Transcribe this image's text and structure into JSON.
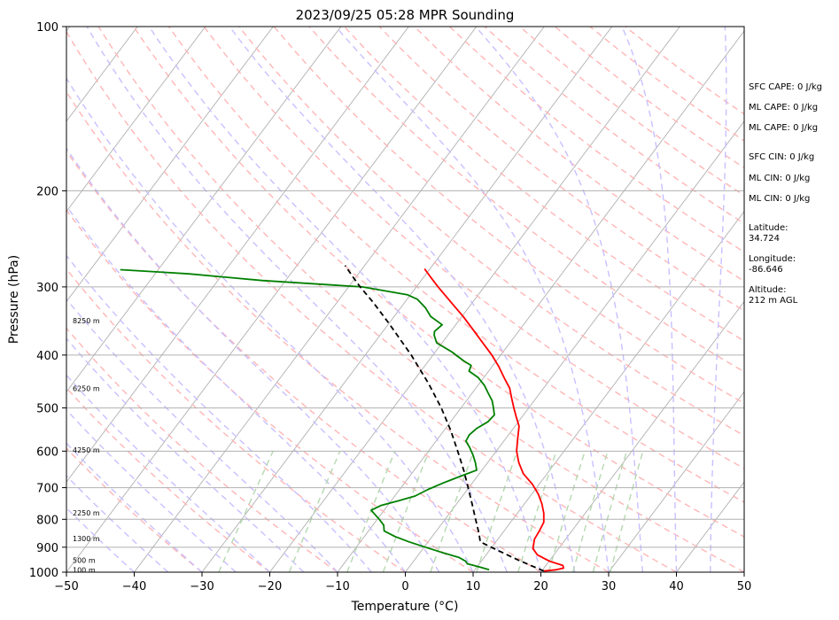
{
  "chart_data": {
    "type": "skew-t log-p sounding",
    "title": "2023/09/25 05:28 MPR Sounding",
    "xlabel": "Temperature (°C)",
    "ylabel": "Pressure (hPa)",
    "xlim": [
      -50,
      50
    ],
    "ylim_pressure": [
      1000,
      100
    ],
    "log_pressure_axis": true,
    "x_ticks": [
      "−50",
      "−40",
      "−30",
      "−20",
      "−10",
      "0",
      "10",
      "20",
      "30",
      "40",
      "50"
    ],
    "y_ticks": [
      "100",
      "200",
      "300",
      "400",
      "500",
      "600",
      "700",
      "800",
      "900",
      "1000"
    ],
    "pressure_gridlines": [
      100,
      200,
      300,
      400,
      500,
      600,
      700,
      800,
      900,
      1000
    ],
    "height_labels": [
      {
        "label": "100 m",
        "p": 990
      },
      {
        "label": "500 m",
        "p": 950
      },
      {
        "label": "1300 m",
        "p": 868
      },
      {
        "label": "2250 m",
        "p": 778
      },
      {
        "label": "4250 m",
        "p": 597
      },
      {
        "label": "6250 m",
        "p": 460
      },
      {
        "label": "8250 m",
        "p": 346
      }
    ],
    "series": [
      {
        "color": "#ff0000",
        "style": "solid",
        "points": [
          {
            "p": 995,
            "t": 20.3
          },
          {
            "p": 990,
            "t": 22.0
          },
          {
            "p": 983,
            "t": 22.9
          },
          {
            "p": 972,
            "t": 22.5
          },
          {
            "p": 955,
            "t": 20.1
          },
          {
            "p": 930,
            "t": 17.6
          },
          {
            "p": 905,
            "t": 16.2
          },
          {
            "p": 870,
            "t": 15.4
          },
          {
            "p": 840,
            "t": 15.2
          },
          {
            "p": 810,
            "t": 14.9
          },
          {
            "p": 780,
            "t": 13.9
          },
          {
            "p": 750,
            "t": 12.6
          },
          {
            "p": 720,
            "t": 11.0
          },
          {
            "p": 690,
            "t": 9.0
          },
          {
            "p": 660,
            "t": 6.5
          },
          {
            "p": 630,
            "t": 4.6
          },
          {
            "p": 600,
            "t": 3.0
          },
          {
            "p": 570,
            "t": 1.8
          },
          {
            "p": 540,
            "t": 0.6
          },
          {
            "p": 520,
            "t": -0.8
          },
          {
            "p": 500,
            "t": -2.2
          },
          {
            "p": 480,
            "t": -3.6
          },
          {
            "p": 460,
            "t": -5.0
          },
          {
            "p": 440,
            "t": -7.0
          },
          {
            "p": 420,
            "t": -9.0
          },
          {
            "p": 400,
            "t": -11.3
          },
          {
            "p": 380,
            "t": -14.0
          },
          {
            "p": 360,
            "t": -16.8
          },
          {
            "p": 340,
            "t": -19.8
          },
          {
            "p": 320,
            "t": -23.2
          },
          {
            "p": 300,
            "t": -26.8
          },
          {
            "p": 290,
            "t": -28.6
          },
          {
            "p": 278,
            "t": -30.8
          }
        ]
      },
      {
        "color": "#008000",
        "style": "solid",
        "points": [
          {
            "p": 990,
            "t": 12.1
          },
          {
            "p": 978,
            "t": 10.3
          },
          {
            "p": 965,
            "t": 8.2
          },
          {
            "p": 955,
            "t": 7.7
          },
          {
            "p": 940,
            "t": 6.3
          },
          {
            "p": 920,
            "t": 3.2
          },
          {
            "p": 900,
            "t": 0.2
          },
          {
            "p": 880,
            "t": -2.8
          },
          {
            "p": 860,
            "t": -5.5
          },
          {
            "p": 840,
            "t": -7.7
          },
          {
            "p": 820,
            "t": -8.4
          },
          {
            "p": 800,
            "t": -9.7
          },
          {
            "p": 785,
            "t": -10.8
          },
          {
            "p": 770,
            "t": -11.9
          },
          {
            "p": 755,
            "t": -11.0
          },
          {
            "p": 740,
            "t": -8.9
          },
          {
            "p": 725,
            "t": -7.0
          },
          {
            "p": 705,
            "t": -5.8
          },
          {
            "p": 685,
            "t": -4.2
          },
          {
            "p": 665,
            "t": -2.3
          },
          {
            "p": 650,
            "t": -0.8
          },
          {
            "p": 630,
            "t": -1.8
          },
          {
            "p": 610,
            "t": -3.0
          },
          {
            "p": 590,
            "t": -4.4
          },
          {
            "p": 575,
            "t": -5.6
          },
          {
            "p": 560,
            "t": -5.8
          },
          {
            "p": 545,
            "t": -5.4
          },
          {
            "p": 530,
            "t": -4.5
          },
          {
            "p": 515,
            "t": -4.3
          },
          {
            "p": 500,
            "t": -5.2
          },
          {
            "p": 485,
            "t": -6.2
          },
          {
            "p": 470,
            "t": -7.6
          },
          {
            "p": 455,
            "t": -9.0
          },
          {
            "p": 440,
            "t": -10.8
          },
          {
            "p": 428,
            "t": -12.9
          },
          {
            "p": 418,
            "t": -13.2
          },
          {
            "p": 410,
            "t": -14.8
          },
          {
            "p": 395,
            "t": -17.5
          },
          {
            "p": 380,
            "t": -20.8
          },
          {
            "p": 368,
            "t": -22.0
          },
          {
            "p": 362,
            "t": -22.4
          },
          {
            "p": 352,
            "t": -22.0
          },
          {
            "p": 340,
            "t": -24.6
          },
          {
            "p": 328,
            "t": -26.3
          },
          {
            "p": 316,
            "t": -28.5
          },
          {
            "p": 310,
            "t": -30.5
          },
          {
            "p": 300,
            "t": -38.0
          },
          {
            "p": 292,
            "t": -53.5
          },
          {
            "p": 284,
            "t": -65.0
          },
          {
            "p": 282,
            "t": -69.0
          },
          {
            "p": 279,
            "t": -75.6
          }
        ]
      },
      {
        "color": "#000000",
        "style": "dashed",
        "points": [
          {
            "p": 995,
            "t": 20.3
          },
          {
            "p": 950,
            "t": 15.3
          },
          {
            "p": 900,
            "t": 9.9
          },
          {
            "p": 880,
            "t": 7.7
          },
          {
            "p": 850,
            "t": 6.6
          },
          {
            "p": 800,
            "t": 4.5
          },
          {
            "p": 750,
            "t": 2.3
          },
          {
            "p": 700,
            "t": -0.1
          },
          {
            "p": 650,
            "t": -2.7
          },
          {
            "p": 600,
            "t": -5.7
          },
          {
            "p": 550,
            "t": -9.0
          },
          {
            "p": 500,
            "t": -12.9
          },
          {
            "p": 450,
            "t": -17.6
          },
          {
            "p": 400,
            "t": -23.2
          },
          {
            "p": 350,
            "t": -30.0
          },
          {
            "p": 320,
            "t": -34.7
          },
          {
            "p": 300,
            "t": -38.3
          },
          {
            "p": 288,
            "t": -40.4
          },
          {
            "p": 274,
            "t": -42.9
          }
        ]
      }
    ],
    "background_lines": {
      "isotherms_color": "#b0b0b0",
      "dry_adiabats_color": "#ffb6b6",
      "moist_adiabats_color": "#c8c0ff",
      "mixing_ratio_color": "#b5d9b0"
    }
  },
  "side_info": {
    "sfc_cape": "SFC CAPE: 0 J/kg",
    "ml_cape_1": "ML CAPE: 0 J/kg",
    "ml_cape_2": "ML CAPE: 0 J/kg",
    "sfc_cin": "SFC CIN: 0 J/kg",
    "ml_cin_1": "ML CIN: 0 J/kg",
    "ml_cin_2": "ML CIN: 0 J/kg",
    "latitude_label": "Latitude:",
    "latitude_value": "34.724",
    "longitude_label": "Longitude:",
    "longitude_value": "-86.646",
    "altitude_label": "Altitude:",
    "altitude_value": "212 m AGL"
  }
}
